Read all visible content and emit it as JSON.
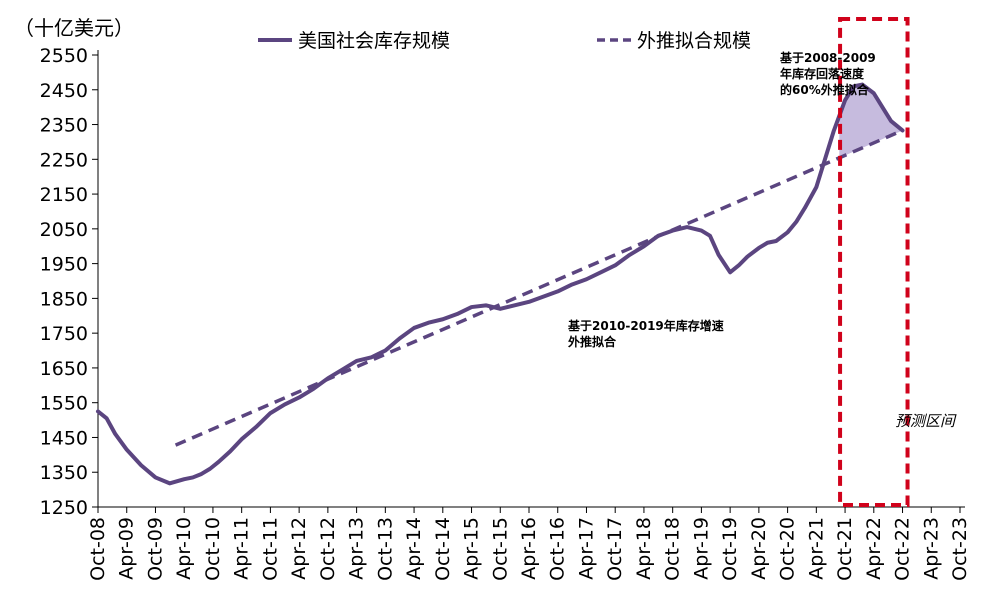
{
  "chart_data": {
    "type": "line",
    "unit_label": "（十亿美元）",
    "x_ticks": [
      "Oct-08",
      "Apr-09",
      "Oct-09",
      "Apr-10",
      "Oct-10",
      "Apr-11",
      "Oct-11",
      "Apr-12",
      "Oct-12",
      "Apr-13",
      "Oct-13",
      "Apr-14",
      "Oct-14",
      "Apr-15",
      "Oct-15",
      "Apr-16",
      "Oct-16",
      "Apr-17",
      "Oct-17",
      "Apr-18",
      "Oct-18",
      "Apr-19",
      "Oct-19",
      "Apr-20",
      "Oct-20",
      "Apr-21",
      "Oct-21",
      "Apr-22",
      "Oct-22",
      "Apr-23",
      "Oct-23"
    ],
    "y_ticks": [
      1250,
      1350,
      1450,
      1550,
      1650,
      1750,
      1850,
      1950,
      2050,
      2150,
      2250,
      2350,
      2450,
      2550
    ],
    "ylim": [
      1250,
      2550
    ],
    "series": [
      {
        "name": "美国社会库存规模",
        "style": "solid",
        "color": "#5b4580",
        "x": [
          0,
          0.3,
          0.6,
          1,
          1.5,
          2,
          2.5,
          3,
          3.3,
          3.6,
          3.9,
          4.2,
          4.6,
          5,
          5.5,
          6,
          6.5,
          7,
          7.5,
          8,
          8.5,
          9,
          9.5,
          10,
          10.5,
          11,
          11.5,
          12,
          12.5,
          13,
          13.5,
          14,
          14.5,
          15,
          15.5,
          16,
          16.5,
          17,
          17.5,
          18,
          18.5,
          19,
          19.5,
          20,
          20.5,
          21,
          21.3,
          21.6,
          22,
          22.3,
          22.6,
          23,
          23.3,
          23.6,
          24,
          24.3,
          24.6,
          25,
          25.3,
          25.6,
          26,
          26.3,
          26.6,
          27,
          27.3,
          27.6,
          28
        ],
        "y": [
          1525,
          1505,
          1460,
          1415,
          1370,
          1335,
          1318,
          1330,
          1335,
          1345,
          1360,
          1380,
          1410,
          1445,
          1480,
          1520,
          1545,
          1565,
          1590,
          1620,
          1645,
          1670,
          1680,
          1700,
          1735,
          1765,
          1780,
          1790,
          1805,
          1825,
          1830,
          1820,
          1830,
          1840,
          1855,
          1870,
          1890,
          1905,
          1925,
          1945,
          1975,
          2000,
          2030,
          2045,
          2055,
          2045,
          2030,
          1975,
          1925,
          1945,
          1970,
          1995,
          2010,
          2015,
          2040,
          2070,
          2110,
          2170,
          2250,
          2330,
          2420,
          2460,
          2465,
          2440,
          2400,
          2360,
          2333
        ]
      },
      {
        "name": "外推拟合规模",
        "style": "dashed",
        "color": "#5b4580",
        "x": [
          2.7,
          28
        ],
        "y": [
          1428,
          2333
        ]
      }
    ],
    "shaded_band": {
      "color": "#c6bbde",
      "x": [
        25.8,
        28
      ]
    },
    "forecast_box": {
      "x_start": 26.0,
      "x_end": 28,
      "color": "#d0021b"
    },
    "annotations": [
      {
        "text": "基于2008-2009\n年库存回落速度\n的60%外推拟合"
      },
      {
        "text": "基于2010-2019年库存增速\n外推拟合"
      },
      {
        "text": "预测区间"
      }
    ]
  }
}
